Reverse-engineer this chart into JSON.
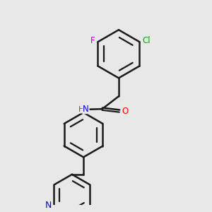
{
  "background_color": "#e8e8e8",
  "bond_color": "#1a1a1a",
  "bond_width": 1.8,
  "atom_colors": {
    "F": "#cc00cc",
    "Cl": "#00aa00",
    "N": "#0000ff",
    "O": "#ff0000",
    "H": "#555555",
    "C": "#1a1a1a"
  },
  "font_size_atoms": 8.5,
  "bg": "#e8e8e8"
}
